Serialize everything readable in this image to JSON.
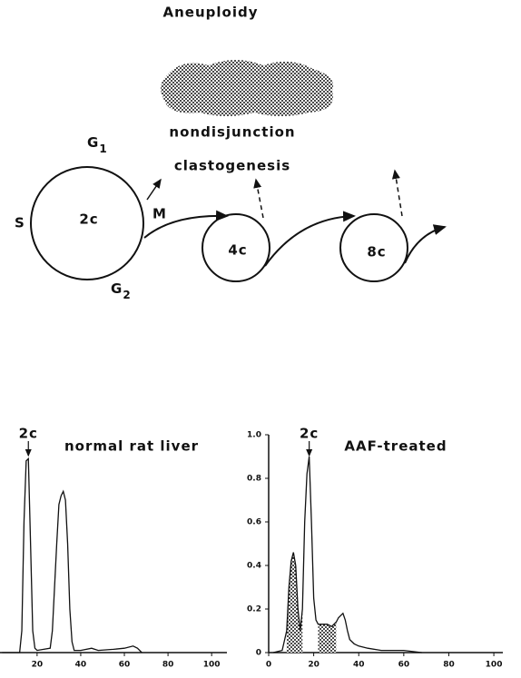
{
  "diagram": {
    "title": "Aneuploidy",
    "cloud_label": "nondisjunction",
    "arrow_label": "clastogenesis",
    "phases": {
      "s": "S",
      "g1": {
        "label": "G",
        "subscript": "1"
      },
      "m": "M",
      "g2": {
        "label": "G",
        "subscript": "2"
      }
    },
    "cells": [
      "2c",
      "4c",
      "8c"
    ]
  },
  "chart_data": [
    {
      "type": "line",
      "title": "normal rat liver",
      "x": [
        4,
        12,
        13,
        14,
        15,
        16,
        17,
        18,
        19,
        20,
        26,
        27,
        28,
        29,
        30,
        31,
        32,
        33,
        34,
        35,
        36,
        37,
        40,
        45,
        48,
        55,
        60,
        64,
        66,
        68
      ],
      "values": [
        0,
        0,
        0.1,
        0.6,
        0.88,
        0.89,
        0.5,
        0.1,
        0.02,
        0.01,
        0.02,
        0.1,
        0.3,
        0.5,
        0.68,
        0.72,
        0.74,
        0.7,
        0.5,
        0.2,
        0.05,
        0.01,
        0.01,
        0.02,
        0.01,
        0.015,
        0.02,
        0.03,
        0.02,
        0
      ],
      "xlim": [
        3,
        107
      ],
      "ylim": [
        0,
        1
      ],
      "xticks": [
        20,
        40,
        60,
        80,
        100
      ],
      "annotation": {
        "text": "2c",
        "x": 16
      }
    },
    {
      "type": "line",
      "title": "AAF-treated",
      "x": [
        2,
        6,
        8,
        9,
        10,
        11,
        12,
        13,
        14,
        15,
        16,
        17,
        18,
        19,
        20,
        21,
        22,
        26,
        28,
        30,
        31,
        32,
        33,
        34,
        35,
        36,
        38,
        40,
        44,
        50,
        60,
        68
      ],
      "values": [
        0,
        0.01,
        0.1,
        0.3,
        0.42,
        0.46,
        0.4,
        0.2,
        0.1,
        0.2,
        0.6,
        0.82,
        0.9,
        0.6,
        0.25,
        0.15,
        0.13,
        0.13,
        0.12,
        0.14,
        0.16,
        0.17,
        0.18,
        0.15,
        0.1,
        0.06,
        0.04,
        0.03,
        0.02,
        0.01,
        0.01,
        0
      ],
      "xlim": [
        0,
        104
      ],
      "ylim": [
        0,
        1
      ],
      "xticks": [
        0,
        20,
        40,
        60,
        80,
        100
      ],
      "yticks": [
        0,
        0.2,
        0.4,
        0.6,
        0.8,
        {
          "value": 1,
          "label": "1.0"
        }
      ],
      "shaded": [
        [
          8,
          15
        ],
        [
          22,
          30
        ]
      ],
      "annotation": {
        "text": "2c",
        "x": 18
      }
    }
  ]
}
